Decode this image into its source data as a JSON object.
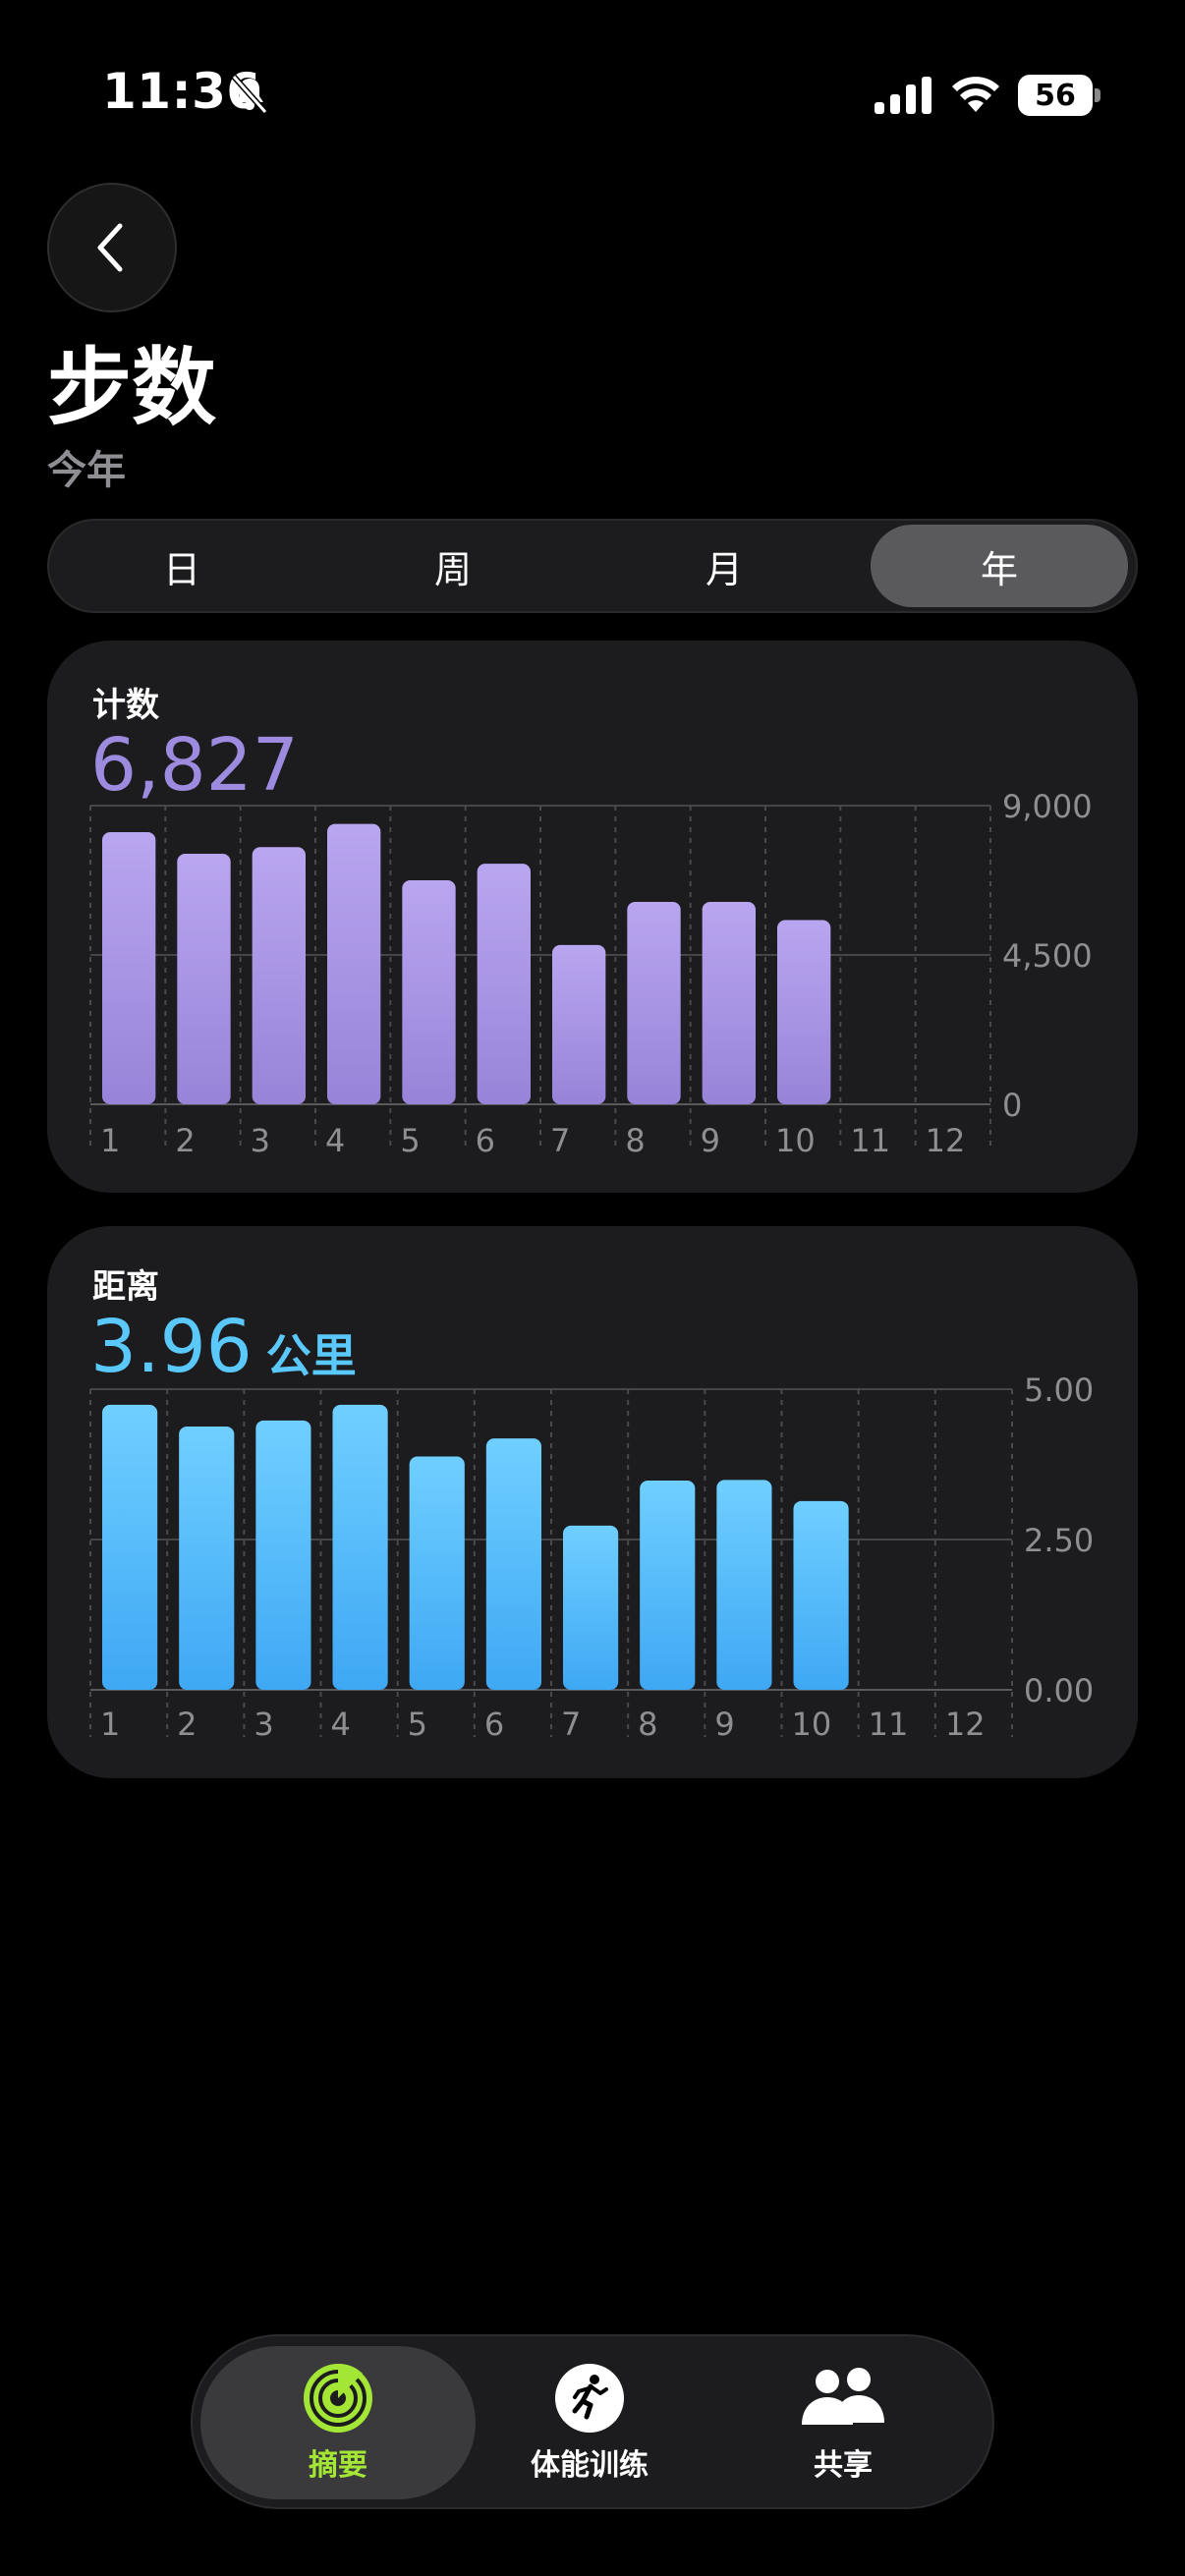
{
  "status_bar": {
    "time": "11:36",
    "battery": "56"
  },
  "header": {
    "title": "步数",
    "subtitle": "今年"
  },
  "segments": [
    {
      "label": "日",
      "active": false
    },
    {
      "label": "周",
      "active": false
    },
    {
      "label": "月",
      "active": false
    },
    {
      "label": "年",
      "active": true
    }
  ],
  "steps_card": {
    "label": "计数",
    "value": "6,827",
    "accent": "#9d8be0"
  },
  "distance_card": {
    "label": "距离",
    "value": "3.96",
    "unit": "公里",
    "accent": "#5ac8fa"
  },
  "chart_data": [
    {
      "type": "bar",
      "categories": [
        "1",
        "2",
        "3",
        "4",
        "5",
        "6",
        "7",
        "8",
        "9",
        "10",
        "11",
        "12"
      ],
      "values": [
        8200,
        7550,
        7750,
        8450,
        6750,
        7250,
        4800,
        6100,
        6100,
        5550,
        null,
        null
      ],
      "y_ticks": [
        "9,000",
        "4,500",
        "0"
      ],
      "ylim": [
        0,
        9000
      ],
      "grid": true
    },
    {
      "type": "bar",
      "categories": [
        "1",
        "2",
        "3",
        "4",
        "5",
        "6",
        "7",
        "8",
        "9",
        "10",
        "11",
        "12"
      ],
      "values": [
        4.74,
        4.38,
        4.48,
        4.74,
        3.88,
        4.18,
        2.73,
        3.48,
        3.49,
        3.14,
        null,
        null
      ],
      "y_ticks": [
        "5.00",
        "2.50",
        "0.00"
      ],
      "ylim": [
        0,
        5
      ],
      "grid": true
    }
  ],
  "tabbar": {
    "items": [
      {
        "label": "摘要",
        "active": true
      },
      {
        "label": "体能训练",
        "active": false
      },
      {
        "label": "共享",
        "active": false
      }
    ]
  }
}
